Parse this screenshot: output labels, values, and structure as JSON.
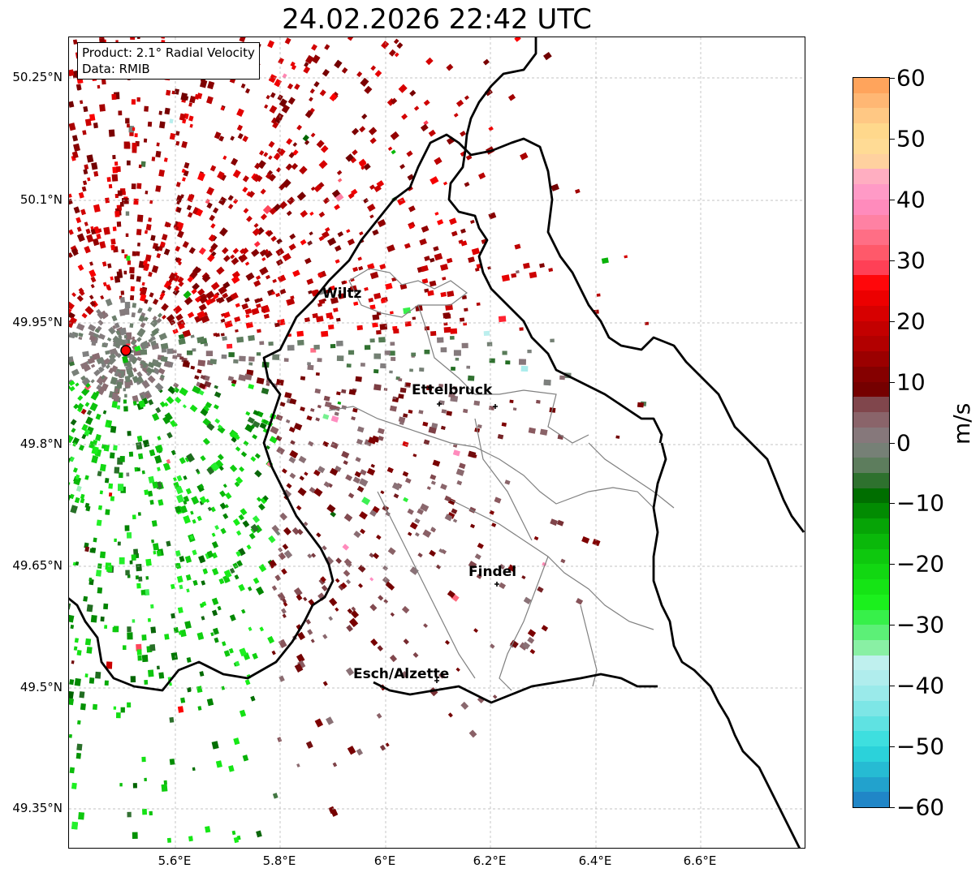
{
  "title": "24.02.2026 22:42 UTC",
  "info": {
    "product": "Product: 2.1° Radial Velocity",
    "source": "Data: RMIB"
  },
  "lat_labels": [
    "50.25°N",
    "50.1°N",
    "49.95°N",
    "49.8°N",
    "49.65°N",
    "49.5°N",
    "49.35°N"
  ],
  "lon_labels": [
    "5.6°E",
    "5.8°E",
    "6°E",
    "6.2°E",
    "6.4°E",
    "6.6°E"
  ],
  "cities": [
    "Wiltz",
    "Ettelbruck",
    "Findel",
    "Esch/Alzette"
  ],
  "colorbar": {
    "unit": "m/s",
    "ticks": [
      "60",
      "50",
      "40",
      "30",
      "20",
      "10",
      "0",
      "−10",
      "−20",
      "−30",
      "−40",
      "−50",
      "−60"
    ],
    "range": [
      -60,
      60
    ]
  },
  "colors": {
    "border": "#000000",
    "canton_lines": "#808080",
    "radar_marker": "#ff0000"
  }
}
